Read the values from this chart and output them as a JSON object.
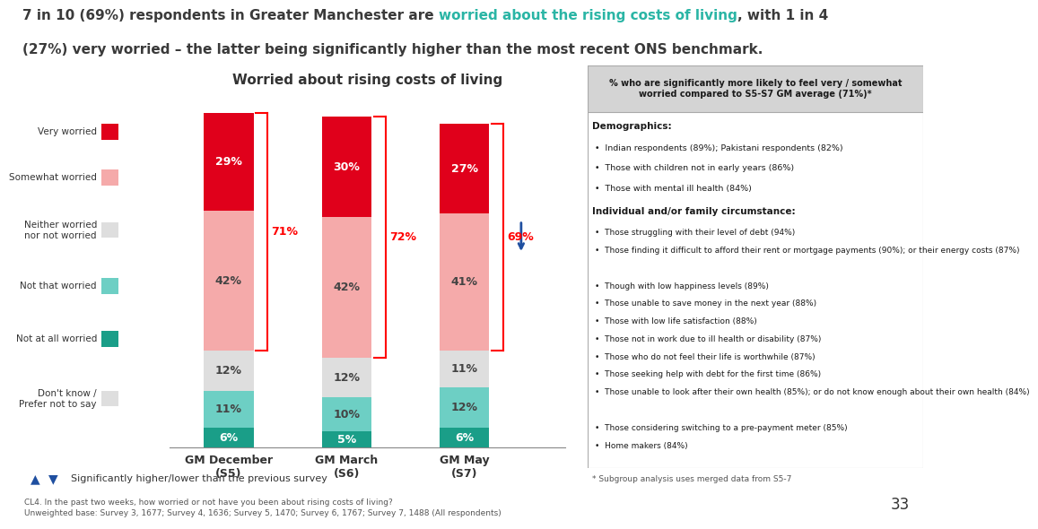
{
  "title_black1": "7 in 10 (69%) respondents in Greater Manchester are ",
  "title_teal": "worried about the rising costs of living",
  "title_black2": ", with 1 in 4",
  "title_line2": "(27%) very worried – the latter being significantly higher than the most recent ONS benchmark.",
  "chart_title": "Worried about rising costs of living",
  "categories": [
    "GM December\n(S5)",
    "GM March\n(S6)",
    "GM May\n(S7)"
  ],
  "plot_order": [
    "Not at all worried",
    "Not that worried",
    "Neither worried\nnor not worried",
    "Somewhat worried",
    "Very worried"
  ],
  "segments": {
    "Very worried": [
      29,
      30,
      27
    ],
    "Somewhat worried": [
      42,
      42,
      41
    ],
    "Neither worried\nnor not worried": [
      12,
      12,
      11
    ],
    "Not that worried": [
      11,
      10,
      12
    ],
    "Not at all worried": [
      6,
      5,
      6
    ]
  },
  "colors": {
    "Very worried": "#e0001b",
    "Somewhat worried": "#f5aaaa",
    "Neither worried\nnor not worried": "#dedede",
    "Not that worried": "#6dcfc4",
    "Not at all worried": "#1a9e88"
  },
  "label_text_colors": {
    "Very worried": "white",
    "Somewhat worried": "#444444",
    "Neither worried\nnor not worried": "#444444",
    "Not that worried": "#444444",
    "Not at all worried": "white"
  },
  "bracket_values": [
    "71%",
    "72%",
    "69%"
  ],
  "footnote1": "CL4. In the past two weeks, how worried or not have you been about rising costs of living?",
  "footnote2": "Unweighted base: Survey 3, 1677; Survey 4, 1636; Survey 5, 1470; Survey 6, 1767; Survey 7, 1488 (All respondents)",
  "page_number": "33",
  "sidebar_header": "% who are significantly more likely to feel very / somewhat\nworried compared to S5-S7 GM average (71%)*",
  "sidebar_bold1": "Demographics:",
  "sidebar_items1": [
    "Indian respondents (89%); Pakistani respondents (82%)",
    "Those with children not in early years (86%)",
    "Those with mental ill health (84%)"
  ],
  "sidebar_bold2": "Individual and/or family circumstance:",
  "sidebar_items2": [
    "Those struggling with their level of debt (94%)",
    "Those finding it difficult to afford their rent or mortgage payments (90%); or their energy costs (87%)",
    "Though with low happiness levels (89%)",
    "Those unable to save money in the next year (88%)",
    "Those with low life satisfaction (88%)",
    "Those not in work due to ill health or disability (87%)",
    "Those who do not feel their life is worthwhile (87%)",
    "Those seeking help with debt for the first time (86%)",
    "Those unable to look after their own health (85%); or do not know enough about their own health (84%)",
    "Those considering switching to a pre-payment meter (85%)",
    "Home makers (84%)"
  ],
  "sidebar_footnote": "* Subgroup analysis uses merged data from S5-7",
  "sig_label": "Significantly higher/lower than the previous survey",
  "teal_color": "#2ab5a5",
  "arrow_color": "#1f4fa0",
  "background_color": "#ffffff",
  "bar_width": 0.42,
  "legend_items": [
    "Very worried",
    "Somewhat worried",
    "Neither worried\nnor not worried",
    "Not that worried",
    "Not at all worried",
    "Don't know /\nPrefer not to say"
  ],
  "legend_colors": [
    "#e0001b",
    "#f5aaaa",
    "#dedede",
    "#6dcfc4",
    "#1a9e88",
    "#dedede"
  ]
}
